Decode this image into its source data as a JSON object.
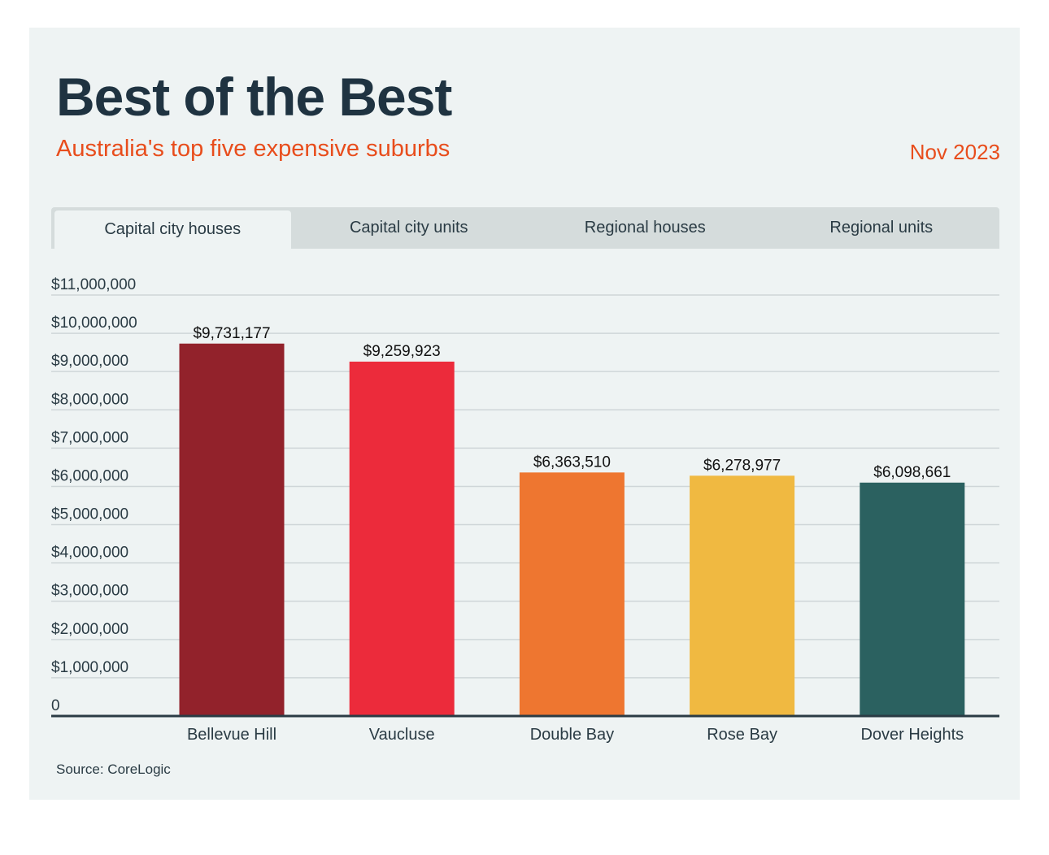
{
  "header": {
    "title": "Best of the Best",
    "subtitle": "Australia's top five expensive suburbs",
    "date": "Nov 2023"
  },
  "tabs": [
    {
      "label": "Capital city houses",
      "active": true
    },
    {
      "label": "Capital city units",
      "active": false
    },
    {
      "label": "Regional houses",
      "active": false
    },
    {
      "label": "Regional units",
      "active": false
    }
  ],
  "source": "Source: CoreLogic",
  "chart_data": {
    "type": "bar",
    "title": "Best of the Best",
    "subtitle": "Australia's top five expensive suburbs",
    "xlabel": "",
    "ylabel": "",
    "categories": [
      "Bellevue Hill",
      "Vaucluse",
      "Double Bay",
      "Rose Bay",
      "Dover Heights"
    ],
    "values": [
      9731177,
      9259923,
      6363510,
      6278977,
      6098661
    ],
    "value_labels": [
      "$9,731,177",
      "$9,259,923",
      "$6,363,510",
      "$6,278,977",
      "$6,098,661"
    ],
    "colors": [
      "#92222b",
      "#ec2b3b",
      "#ee7630",
      "#f0b941",
      "#2b6160"
    ],
    "ylim": [
      0,
      11000000
    ],
    "yticks": [
      0,
      1000000,
      2000000,
      3000000,
      4000000,
      5000000,
      6000000,
      7000000,
      8000000,
      9000000,
      10000000,
      11000000
    ],
    "ytick_labels": [
      "0",
      "$1,000,000",
      "$2,000,000",
      "$3,000,000",
      "$4,000,000",
      "$5,000,000",
      "$6,000,000",
      "$7,000,000",
      "$8,000,000",
      "$9,000,000",
      "$10,000,000",
      "$11,000,000"
    ],
    "grid": true,
    "gridline_color": "#cfd6d8",
    "axis_color": "#2a3b44",
    "text_color": "#2a3b44"
  }
}
